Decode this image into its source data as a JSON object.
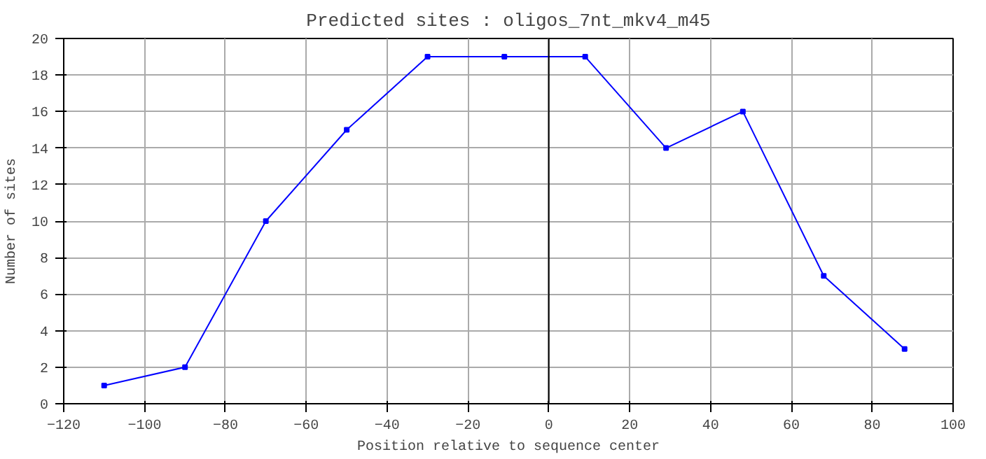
{
  "chart_data": {
    "type": "line",
    "title": "Predicted sites : oligos_7nt_mkv4_m45",
    "xlabel": "Position relative to sequence center",
    "ylabel": "Number of sites",
    "x": [
      -110,
      -90,
      -70,
      -50,
      -30,
      -11,
      9,
      29,
      48,
      68,
      88
    ],
    "series": [
      {
        "color": "#0000ff",
        "values": [
          1,
          2,
          10,
          15,
          19,
          19,
          19,
          14,
          16,
          7,
          3
        ]
      }
    ],
    "xlim": [
      -120,
      100
    ],
    "xticks": [
      -120,
      -100,
      -80,
      -60,
      -40,
      -20,
      0,
      20,
      40,
      60,
      80,
      100
    ],
    "ylim": [
      0,
      20
    ],
    "yticks": [
      0,
      2,
      4,
      6,
      8,
      10,
      12,
      14,
      16,
      18,
      20
    ],
    "ref_lines": [
      {
        "axis": "x",
        "value": 0,
        "color": "#000000"
      }
    ],
    "grid": true,
    "marker": "square",
    "line_style": "solid"
  }
}
